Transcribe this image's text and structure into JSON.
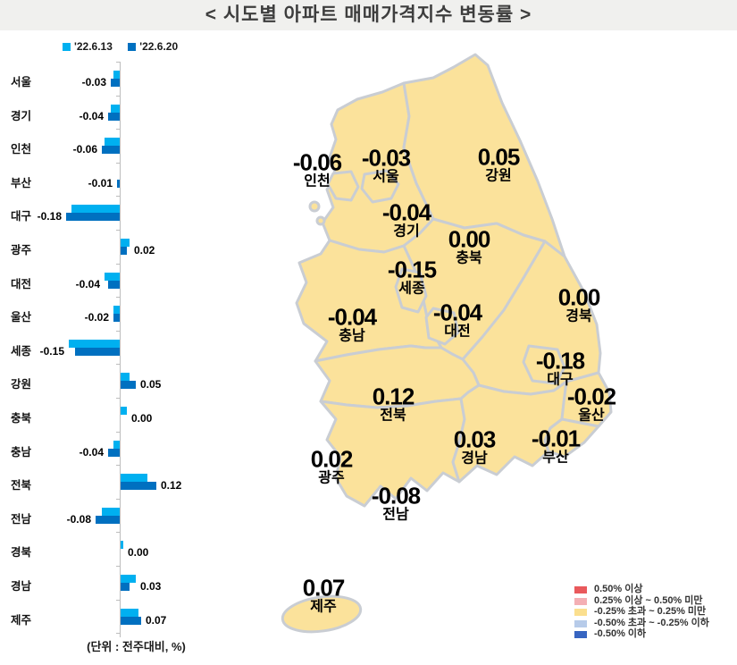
{
  "title": "< 시도별 아파트 매매가격지수 변동률 >",
  "unit_note": "(단위 : 전주대비, %)",
  "bar_legend": {
    "prev": {
      "label": "'22.6.13",
      "color": "#00b0f0"
    },
    "curr": {
      "label": "'22.6.20",
      "color": "#0070c0"
    }
  },
  "regions": [
    {
      "name": "서울",
      "prev": -0.02,
      "curr": -0.03,
      "curr_label": "-0.03"
    },
    {
      "name": "경기",
      "prev": -0.03,
      "curr": -0.04,
      "curr_label": "-0.04"
    },
    {
      "name": "인천",
      "prev": -0.05,
      "curr": -0.06,
      "curr_label": "-0.06"
    },
    {
      "name": "부산",
      "prev": 0.0,
      "curr": -0.01,
      "curr_label": "-0.01"
    },
    {
      "name": "대구",
      "prev": -0.16,
      "curr": -0.18,
      "curr_label": "-0.18"
    },
    {
      "name": "광주",
      "prev": 0.03,
      "curr": 0.02,
      "curr_label": "0.02"
    },
    {
      "name": "대전",
      "prev": -0.05,
      "curr": -0.04,
      "curr_label": "-0.04"
    },
    {
      "name": "울산",
      "prev": -0.02,
      "curr": -0.02,
      "curr_label": "-0.02"
    },
    {
      "name": "세종",
      "prev": -0.17,
      "curr": -0.15,
      "curr_label": "-0.15"
    },
    {
      "name": "강원",
      "prev": 0.03,
      "curr": 0.05,
      "curr_label": "0.05"
    },
    {
      "name": "충북",
      "prev": 0.02,
      "curr": 0.0,
      "curr_label": "0.00"
    },
    {
      "name": "충남",
      "prev": -0.02,
      "curr": -0.04,
      "curr_label": "-0.04"
    },
    {
      "name": "전북",
      "prev": 0.09,
      "curr": 0.12,
      "curr_label": "0.12"
    },
    {
      "name": "전남",
      "prev": -0.06,
      "curr": -0.08,
      "curr_label": "-0.08"
    },
    {
      "name": "경북",
      "prev": 0.01,
      "curr": 0.0,
      "curr_label": "0.00"
    },
    {
      "name": "경남",
      "prev": 0.05,
      "curr": 0.03,
      "curr_label": "0.03"
    },
    {
      "name": "제주",
      "prev": 0.06,
      "curr": 0.07,
      "curr_label": "0.07"
    }
  ],
  "map_legend": {
    "items": [
      {
        "label": "0.50% 이상",
        "color": "#e9595c"
      },
      {
        "label": "0.25% 이상 ~ 0.50% 미만",
        "color": "#f4afb4"
      },
      {
        "label": "-0.25% 초과 ~ 0.25% 미만",
        "color": "#fbdf8e"
      },
      {
        "label": "-0.50% 초과 ~ -0.25% 이하",
        "color": "#b7cbe9"
      },
      {
        "label": "-0.50% 이하",
        "color": "#3765c1"
      }
    ]
  },
  "map_colors": {
    "fill": "#fbe29b",
    "border": "#c9cdd3"
  },
  "chart_data": {
    "type": "bar",
    "orientation": "horizontal",
    "title": "< 시도별 아파트 매매가격지수 변동률 >",
    "unit": "전주대비, %",
    "categories": [
      "서울",
      "경기",
      "인천",
      "부산",
      "대구",
      "광주",
      "대전",
      "울산",
      "세종",
      "강원",
      "충북",
      "충남",
      "전북",
      "전남",
      "경북",
      "경남",
      "제주"
    ],
    "series": [
      {
        "name": "'22.6.13",
        "values": [
          -0.02,
          -0.03,
          -0.05,
          0.0,
          -0.16,
          0.03,
          -0.05,
          -0.02,
          -0.17,
          0.03,
          0.02,
          -0.02,
          0.09,
          -0.06,
          0.01,
          0.05,
          0.06
        ]
      },
      {
        "name": "'22.6.20",
        "values": [
          -0.03,
          -0.04,
          -0.06,
          -0.01,
          -0.18,
          0.02,
          -0.04,
          -0.02,
          -0.15,
          0.05,
          0.0,
          -0.04,
          0.12,
          -0.08,
          0.0,
          0.03,
          0.07
        ]
      }
    ],
    "xlim": [
      -0.2,
      0.15
    ],
    "legend_position": "top-left",
    "map_note": "choropleth map shows '22.6.20 values; all provinces in -0.25%~0.25% band (pale yellow)"
  }
}
